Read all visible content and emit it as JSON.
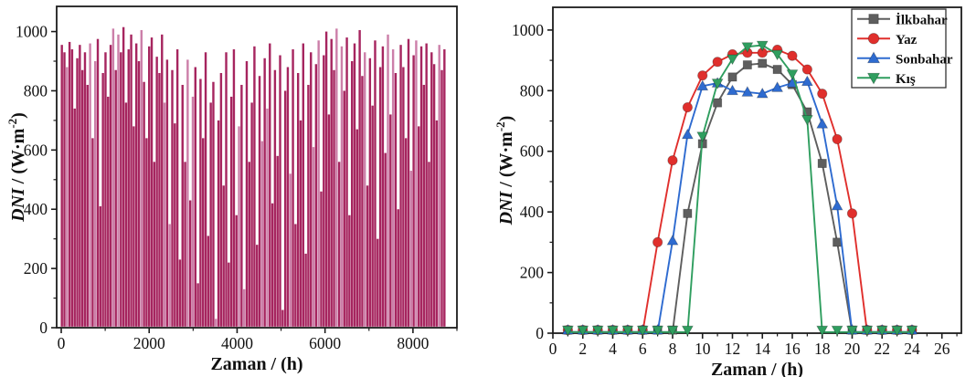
{
  "figure_title": "",
  "chart_data": [
    {
      "id": "annual",
      "type": "bar",
      "title": "",
      "xlabel": "Zaman / (h)",
      "ylabel": "DNI / (W·m⁻²)",
      "ylabel_parts": [
        {
          "text": "DNI",
          "style": "italic"
        },
        {
          "text": " / (W·m",
          "style": "plain"
        },
        {
          "text": "-2",
          "style": "sup"
        },
        {
          "text": ")",
          "style": "plain"
        }
      ],
      "xlim": [
        -104,
        9000
      ],
      "ylim": [
        0,
        1085
      ],
      "x_range_hours": [
        0,
        8760
      ],
      "xticks": [
        0,
        2000,
        4000,
        6000,
        8000
      ],
      "yticks": [
        0,
        200,
        400,
        600,
        800,
        1000
      ],
      "x_minor_step": 1000,
      "y_minor_step": 100,
      "grid": false,
      "bar_color": "#a6255f",
      "bar_color_light": "#cc7fa9",
      "hours_per_sample": 58.4,
      "values": [
        955,
        930,
        880,
        965,
        940,
        740,
        910,
        955,
        870,
        930,
        820,
        960,
        640,
        900,
        975,
        410,
        860,
        930,
        780,
        955,
        1010,
        870,
        990,
        930,
        1015,
        760,
        940,
        990,
        680,
        960,
        900,
        1005,
        830,
        640,
        950,
        980,
        560,
        915,
        860,
        990,
        760,
        905,
        350,
        870,
        690,
        940,
        230,
        820,
        560,
        905,
        430,
        780,
        880,
        150,
        840,
        640,
        930,
        310,
        760,
        830,
        30,
        700,
        860,
        480,
        930,
        220,
        780,
        940,
        380,
        680,
        820,
        130,
        900,
        560,
        760,
        950,
        280,
        850,
        630,
        910,
        740,
        960,
        420,
        870,
        580,
        920,
        60,
        800,
        880,
        520,
        940,
        350,
        860,
        700,
        960,
        250,
        820,
        930,
        610,
        890,
        970,
        460,
        920,
        1000,
        720,
        975,
        870,
        1010,
        560,
        950,
        800,
        980,
        380,
        900,
        960,
        670,
        1005,
        850,
        930,
        480,
        910,
        750,
        970,
        300,
        880,
        950,
        590,
        990,
        720,
        940,
        860,
        400,
        955,
        880,
        640,
        975,
        530,
        920,
        970,
        680,
        950,
        820,
        960,
        560,
        930,
        890,
        700,
        955,
        870,
        940
      ]
    },
    {
      "id": "seasonal",
      "type": "line",
      "title": "",
      "xlabel": "Zaman / (h)",
      "ylabel": "DNI / (W·m⁻²)",
      "ylabel_parts": [
        {
          "text": "DNI",
          "style": "italic"
        },
        {
          "text": " / (W·m",
          "style": "plain"
        },
        {
          "text": "-2",
          "style": "sup"
        },
        {
          "text": ")",
          "style": "plain"
        }
      ],
      "xlim": [
        0,
        27.3
      ],
      "ylim": [
        0,
        1075
      ],
      "xticks": [
        0,
        2,
        4,
        6,
        8,
        10,
        12,
        14,
        16,
        18,
        20,
        22,
        24,
        26
      ],
      "yticks": [
        0,
        200,
        400,
        600,
        800,
        1000
      ],
      "x_minor_step": 1,
      "y_minor_step": 100,
      "grid": false,
      "x": [
        1,
        2,
        3,
        4,
        5,
        6,
        7,
        8,
        9,
        10,
        11,
        12,
        13,
        14,
        15,
        16,
        17,
        18,
        19,
        20,
        21,
        22,
        23,
        24
      ],
      "series": [
        {
          "name": "İlkbahar",
          "color": "#5e5e5e",
          "marker": "square",
          "values": [
            0,
            0,
            0,
            0,
            0,
            0,
            0,
            0,
            395,
            625,
            760,
            845,
            885,
            890,
            870,
            820,
            730,
            560,
            300,
            0,
            0,
            0,
            0,
            0
          ]
        },
        {
          "name": "Yaz",
          "color": "#e02f2c",
          "marker": "circle",
          "values": [
            0,
            0,
            0,
            0,
            0,
            0,
            300,
            570,
            745,
            850,
            895,
            920,
            925,
            925,
            935,
            915,
            870,
            790,
            640,
            395,
            0,
            0,
            0,
            0
          ]
        },
        {
          "name": "Sonbahar",
          "color": "#2e6bd0",
          "marker": "triangle-up",
          "values": [
            0,
            0,
            0,
            0,
            0,
            0,
            0,
            305,
            655,
            815,
            825,
            800,
            795,
            790,
            810,
            825,
            830,
            690,
            420,
            0,
            0,
            0,
            0,
            0
          ]
        },
        {
          "name": "Kış",
          "color": "#2f9e5f",
          "marker": "triangle-down",
          "values": [
            0,
            0,
            0,
            0,
            0,
            0,
            0,
            0,
            0,
            650,
            825,
            905,
            945,
            950,
            920,
            855,
            705,
            0,
            0,
            0,
            0,
            0,
            0,
            0
          ]
        }
      ],
      "legend": {
        "position": "top-right",
        "entries": [
          "İlkbahar",
          "Yaz",
          "Sonbahar",
          "Kış"
        ]
      }
    }
  ]
}
